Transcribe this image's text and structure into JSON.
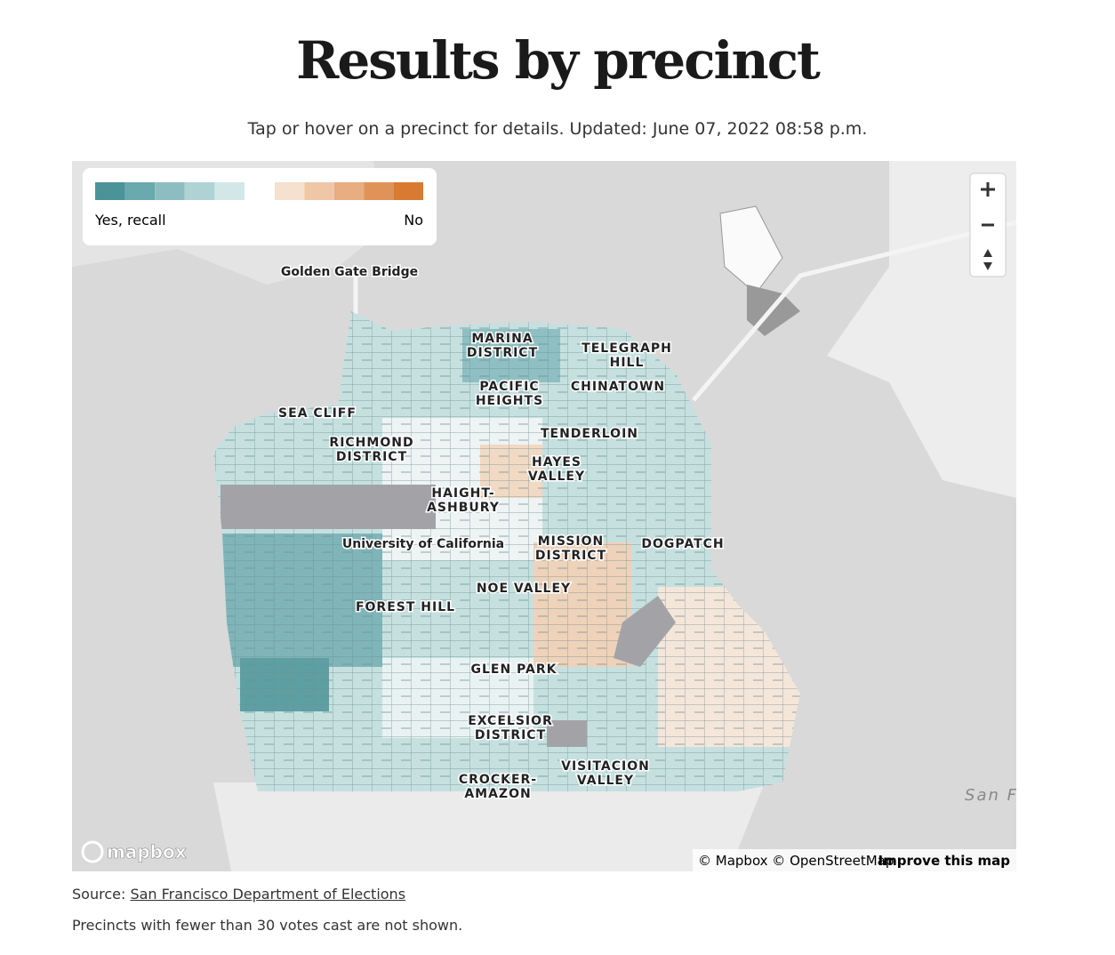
{
  "header": {
    "title": "Results by precinct",
    "subtitle": "Tap or hover on a precinct for details. Updated: June 07, 2022 08:58 p.m."
  },
  "legend": {
    "yes_label": "Yes, recall",
    "no_label": "No",
    "yes_colors": [
      "#4a9499",
      "#6aa9ad",
      "#8cbec1",
      "#afd3d5",
      "#d3e7e8"
    ],
    "no_colors": [
      "#f6e0cf",
      "#efc7a7",
      "#e8ad80",
      "#e09358",
      "#d97a33"
    ]
  },
  "map": {
    "labels": [
      [
        "Golden Gate Bridge"
      ],
      [
        "MARINA",
        "DISTRICT"
      ],
      [
        "TELEGRAPH",
        "HILL"
      ],
      [
        "PACIFIC",
        "HEIGHTS"
      ],
      [
        "CHINATOWN"
      ],
      [
        "SEA CLIFF"
      ],
      [
        "TENDERLOIN"
      ],
      [
        "RICHMOND",
        "DISTRICT"
      ],
      [
        "HAYES",
        "VALLEY"
      ],
      [
        "HAIGHT-",
        "ASHBURY"
      ],
      [
        "University of California"
      ],
      [
        "MISSION",
        "DISTRICT"
      ],
      [
        "DOGPATCH"
      ],
      [
        "NOE VALLEY"
      ],
      [
        "FOREST HILL"
      ],
      [
        "GLEN PARK"
      ],
      [
        "EXCELSIOR",
        "DISTRICT"
      ],
      [
        "VISITACION",
        "VALLEY"
      ],
      [
        "CROCKER-",
        "AMAZON"
      ]
    ],
    "water_label": "San F",
    "logo": "mapbox",
    "attribution": "© Mapbox © OpenStreetMap",
    "improve": "Improve this map"
  },
  "footer": {
    "source_prefix": "Source:",
    "source_link": "San Francisco Department of Elections",
    "note": "Precincts with fewer than 30 votes cast are not shown."
  }
}
